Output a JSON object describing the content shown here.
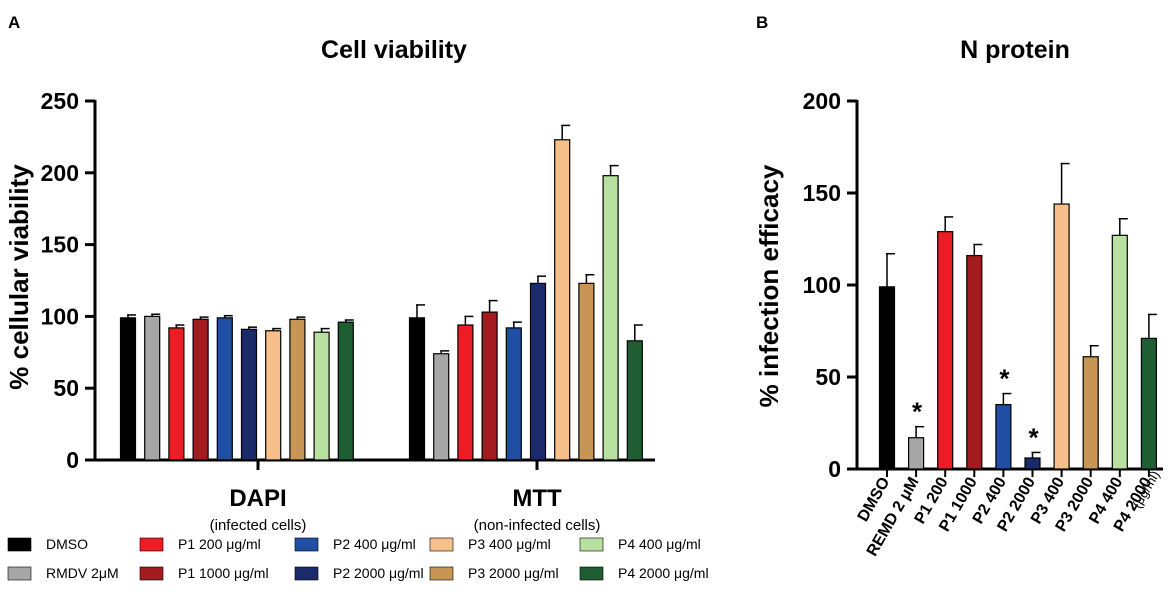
{
  "panelA": {
    "letter": "A",
    "title": "Cell viability",
    "ylabel": "% cellular viability",
    "ylim": [
      0,
      250
    ],
    "yticks": [
      "0",
      "50",
      "100",
      "150",
      "200",
      "250"
    ],
    "groups": [
      {
        "label": "DAPI",
        "sublabel": "(infected cells)"
      },
      {
        "label": "MTT",
        "sublabel": "(non-infected cells)"
      }
    ]
  },
  "panelB": {
    "letter": "B",
    "title": "N protein",
    "ylabel": "% infection efficacy",
    "ylim": [
      0,
      200
    ],
    "yticks": [
      "0",
      "50",
      "100",
      "150",
      "200"
    ],
    "unit_note": "(μg/ml)"
  },
  "legend": [
    {
      "label": "DMSO",
      "color": "#000000"
    },
    {
      "label": "RMDV 2μM",
      "color": "#a6a6a6"
    },
    {
      "label": "P1 200 μg/ml",
      "color": "#ee1c24"
    },
    {
      "label": "P1 1000 μg/ml",
      "color": "#a31a1f"
    },
    {
      "label": "P2 400 μg/ml",
      "color": "#1f4ea3"
    },
    {
      "label": "P2 2000 μg/ml",
      "color": "#1b2a6b"
    },
    {
      "label": "P3 400 μg/ml",
      "color": "#f7c08a"
    },
    {
      "label": "P3 2000 μg/ml",
      "color": "#c79654"
    },
    {
      "label": "P4 400 μg/ml",
      "color": "#b8e0a0"
    },
    {
      "label": "P4 2000 μg/ml",
      "color": "#1f5e33"
    }
  ],
  "chart_data": [
    {
      "type": "bar",
      "title": "Cell viability",
      "ylabel": "% cellular viability",
      "ylim": [
        0,
        250
      ],
      "categories": [
        "DAPI",
        "MTT"
      ],
      "series": [
        {
          "name": "DMSO",
          "values": [
            99,
            99
          ],
          "errors": [
            2,
            9
          ]
        },
        {
          "name": "RMDV 2μM",
          "values": [
            100,
            74
          ],
          "errors": [
            1.5,
            2
          ]
        },
        {
          "name": "P1 200 μg/ml",
          "values": [
            92,
            94
          ],
          "errors": [
            2,
            6
          ]
        },
        {
          "name": "P1 1000 μg/ml",
          "values": [
            98,
            103
          ],
          "errors": [
            1.5,
            8
          ]
        },
        {
          "name": "P2 400 μg/ml",
          "values": [
            99,
            92
          ],
          "errors": [
            1.5,
            4
          ]
        },
        {
          "name": "P2 2000 μg/ml",
          "values": [
            91,
            123
          ],
          "errors": [
            1.5,
            5
          ]
        },
        {
          "name": "P3 400 μg/ml",
          "values": [
            90,
            223
          ],
          "errors": [
            1.5,
            10
          ]
        },
        {
          "name": "P3 2000 μg/ml",
          "values": [
            98,
            123
          ],
          "errors": [
            1.5,
            6
          ]
        },
        {
          "name": "P4 400 μg/ml",
          "values": [
            89,
            198
          ],
          "errors": [
            2.5,
            7
          ]
        },
        {
          "name": "P4 2000 μg/ml",
          "values": [
            96,
            83
          ],
          "errors": [
            1.5,
            11
          ]
        }
      ]
    },
    {
      "type": "bar",
      "title": "N protein",
      "ylabel": "% infection efficacy",
      "ylim": [
        0,
        200
      ],
      "categories": [
        "DMSO",
        "REMD 2 μM",
        "P1 200",
        "P1 1000",
        "P2 400",
        "P2 2000",
        "P3 400",
        "P3 2000",
        "P4 400",
        "P4 2000"
      ],
      "values": [
        99,
        17,
        129,
        116,
        35,
        6,
        144,
        61,
        127,
        71
      ],
      "errors": [
        18,
        6,
        8,
        6,
        6,
        3,
        22,
        6,
        9,
        13
      ],
      "significance": [
        "",
        "*",
        "",
        "",
        "*",
        "*",
        "",
        "",
        "",
        ""
      ]
    }
  ]
}
